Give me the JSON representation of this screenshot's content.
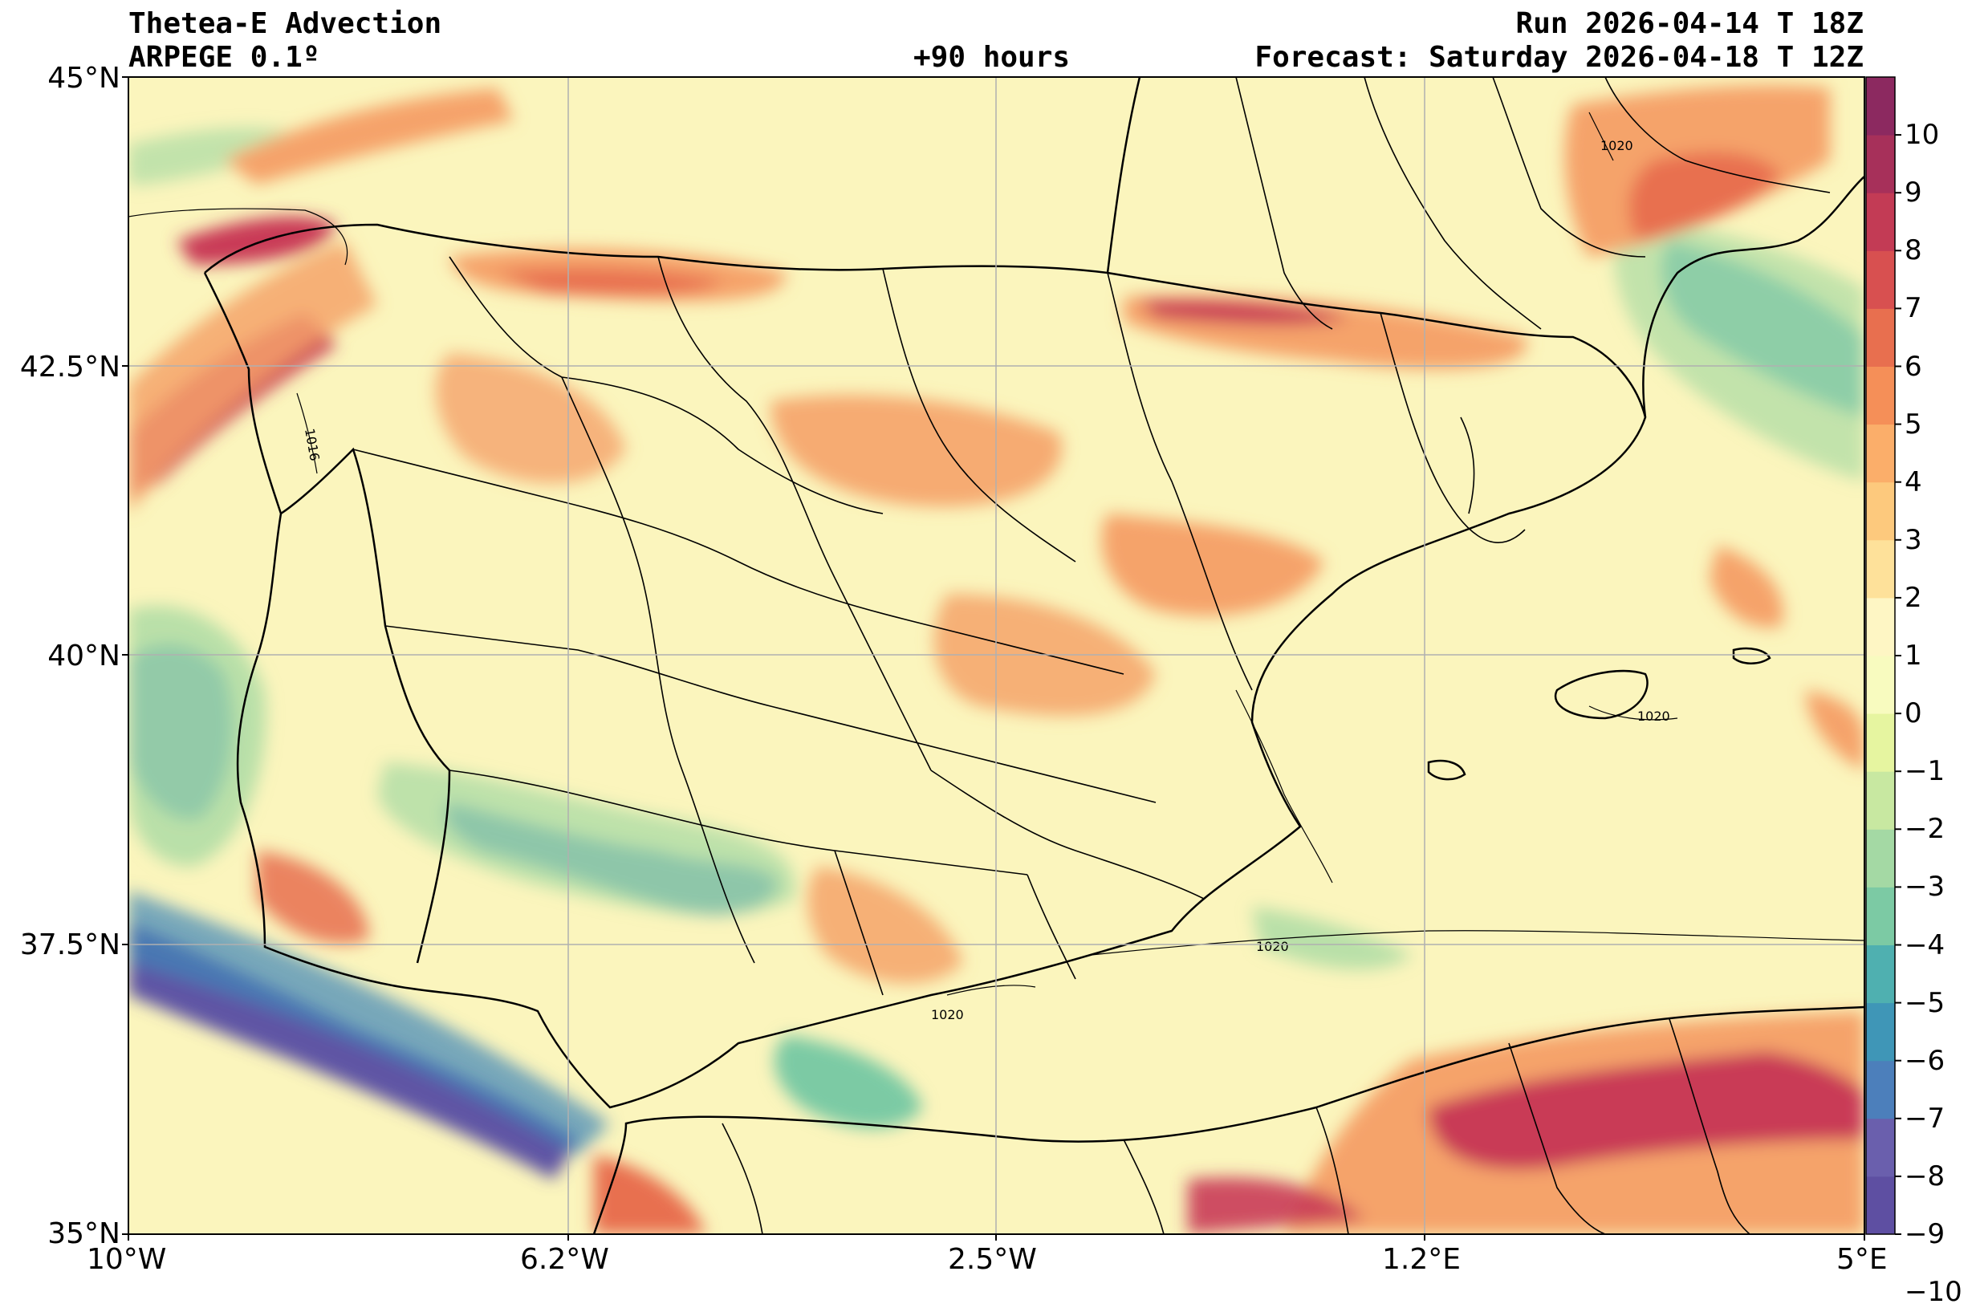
{
  "header": {
    "title": "Thetea-E Advection",
    "model": "ARPEGE 0.1º",
    "lead_time": "+90 hours",
    "run": "Run 2026-04-14 T 18Z",
    "forecast": "Forecast: Saturday 2026-04-18 T 12Z"
  },
  "axes": {
    "lat_labels": [
      "45°N",
      "42.5°N",
      "40°N",
      "37.5°N",
      "35°N"
    ],
    "lon_labels": [
      "10°W",
      "6.2°W",
      "2.5°W",
      "1.2°E",
      "5°E"
    ]
  },
  "colorbar": {
    "ticks": [
      "10",
      "9",
      "8",
      "7",
      "6",
      "5",
      "4",
      "3",
      "2",
      "1",
      "0",
      "−1",
      "−2",
      "−3",
      "−4",
      "−5",
      "−6",
      "−7",
      "−8",
      "−9",
      "−10"
    ],
    "colors": [
      "#5e4fa2",
      "#6a5fad",
      "#4c7fbb",
      "#3f96b7",
      "#4fb0b0",
      "#7ccaa4",
      "#a4d9a4",
      "#c8e8a1",
      "#e6f5a0",
      "#f8fbbf",
      "#fef6c4",
      "#fee19a",
      "#fdc97d",
      "#fbae6a",
      "#f58f58",
      "#e86f4f",
      "#d85050",
      "#c33b55",
      "#a7305a",
      "#8c2960"
    ],
    "colors_note": "negative-to-positive"
  },
  "isobars": {
    "labels": [
      "1020",
      "1020",
      "1020",
      "1020",
      "1016"
    ]
  },
  "map_colors": {
    "neutral": "#fbf5bd",
    "warm": "#f5a36a",
    "hot": "#c93a56",
    "cool": "#a9dba4",
    "cold": "#3e86b8",
    "coldest": "#5f55a4"
  }
}
